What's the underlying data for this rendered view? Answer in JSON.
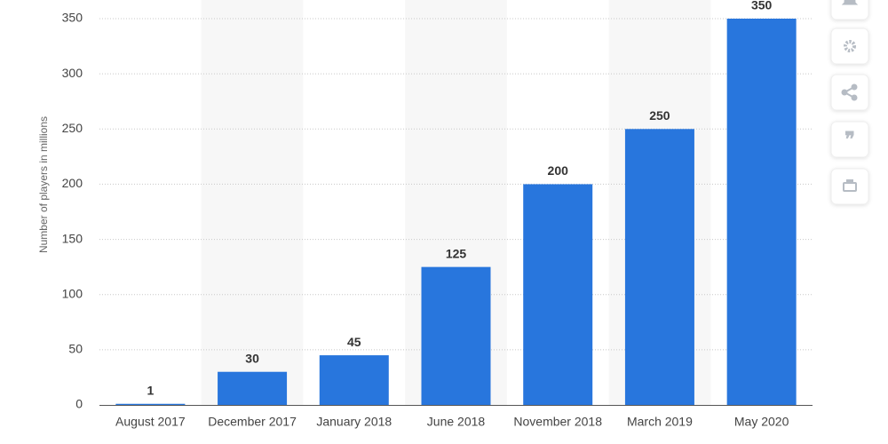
{
  "chart_data": {
    "type": "bar",
    "y_axis_label": "Number of players in millions",
    "categories": [
      "August 2017",
      "December 2017",
      "January 2018",
      "June 2018",
      "November 2018",
      "March 2019",
      "May 2020"
    ],
    "values": [
      1,
      30,
      45,
      125,
      200,
      250,
      350
    ],
    "color": "#2876dd",
    "ylim": [
      0,
      350
    ],
    "yticks": [
      0,
      50,
      100,
      150,
      200,
      250,
      300,
      350
    ],
    "grid": true
  }
}
